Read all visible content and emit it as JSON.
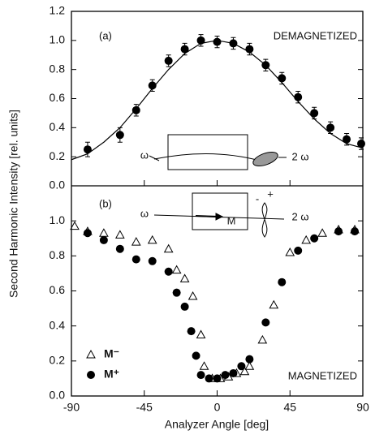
{
  "chart_data": [
    {
      "type": "scatter",
      "y_label": "Second Harmonic Intensity [rel. units]",
      "annotations": [
        "(a)",
        "DEMAGNETIZED",
        "ω",
        "2 ω"
      ],
      "color": "#000000",
      "x": [
        -80,
        -60,
        -50,
        -40,
        -30,
        -20,
        -10,
        0,
        10,
        20,
        30,
        40,
        50,
        60,
        70,
        80,
        89
      ],
      "values": [
        0.25,
        0.35,
        0.52,
        0.69,
        0.86,
        0.94,
        1.0,
        0.99,
        0.98,
        0.94,
        0.83,
        0.74,
        0.61,
        0.5,
        0.4,
        0.32,
        0.29
      ],
      "errors": [
        0.05,
        0.05,
        0.04,
        0.04,
        0.04,
        0.04,
        0.04,
        0.04,
        0.04,
        0.04,
        0.04,
        0.04,
        0.04,
        0.04,
        0.04,
        0.04,
        0.04
      ],
      "fit": {
        "x": [
          -90,
          -80,
          -70,
          -60,
          -50,
          -40,
          -30,
          -20,
          -10,
          0,
          10,
          20,
          30,
          40,
          50,
          60,
          70,
          80,
          90
        ],
        "values": [
          0.18,
          0.22,
          0.3,
          0.4,
          0.53,
          0.67,
          0.8,
          0.91,
          0.98,
          1.0,
          0.98,
          0.92,
          0.83,
          0.71,
          0.58,
          0.46,
          0.36,
          0.29,
          0.26
        ]
      },
      "xlim": [
        -90,
        90
      ],
      "ylim": [
        0,
        1.2
      ],
      "yticks": [
        {
          "value": 0,
          "label": "0.0"
        },
        {
          "value": 0.2,
          "label": "0.2"
        },
        {
          "value": 0.4,
          "label": "0.4"
        },
        {
          "value": 0.6,
          "label": "0.6"
        },
        {
          "value": 0.8,
          "label": "0.8"
        },
        {
          "value": 1.0,
          "label": "1.0"
        },
        {
          "value": 1.2,
          "label": "1.2"
        }
      ]
    },
    {
      "type": "scatter",
      "x_label": "Analyzer Angle [deg]",
      "annotations": [
        "(b)",
        "MAGNETIZED",
        "ω",
        "M",
        "2 ω",
        "-",
        "+"
      ],
      "series": [
        {
          "name": "M⁻",
          "marker": "triangle",
          "color": "#000000",
          "x": [
            -88,
            -80,
            -70,
            -60,
            -50,
            -40,
            -30,
            -25,
            -20,
            -15,
            -10,
            -8,
            -3,
            2,
            7,
            12,
            17,
            20,
            28,
            35,
            45,
            55,
            65,
            75,
            85
          ],
          "values": [
            0.97,
            0.94,
            0.93,
            0.92,
            0.88,
            0.89,
            0.84,
            0.72,
            0.67,
            0.57,
            0.35,
            0.17,
            0.1,
            0.1,
            0.11,
            0.13,
            0.14,
            0.17,
            0.32,
            0.52,
            0.82,
            0.89,
            0.93,
            0.95,
            0.95
          ]
        },
        {
          "name": "M⁺",
          "marker": "circle",
          "color": "#000000",
          "x": [
            -80,
            -70,
            -60,
            -50,
            -40,
            -30,
            -25,
            -20,
            -16,
            -13,
            -10,
            -5,
            0,
            5,
            10,
            15,
            20,
            30,
            40,
            50,
            60,
            75,
            85
          ],
          "values": [
            0.93,
            0.89,
            0.84,
            0.78,
            0.77,
            0.71,
            0.59,
            0.51,
            0.37,
            0.23,
            0.12,
            0.1,
            0.1,
            0.12,
            0.13,
            0.17,
            0.21,
            0.42,
            0.65,
            0.83,
            0.9,
            0.94,
            0.94
          ]
        }
      ],
      "xlim": [
        -90,
        90
      ],
      "xticks": [
        -90,
        -45,
        0,
        45,
        90
      ],
      "ylim": [
        0,
        1.2
      ],
      "yticks": [
        {
          "value": 0,
          "label": "0.0"
        },
        {
          "value": 0.2,
          "label": "0.2"
        },
        {
          "value": 0.4,
          "label": "0.4"
        },
        {
          "value": 0.6,
          "label": "0.6"
        },
        {
          "value": 0.8,
          "label": "0.8"
        },
        {
          "value": 1.0,
          "label": "1.0"
        }
      ]
    }
  ]
}
